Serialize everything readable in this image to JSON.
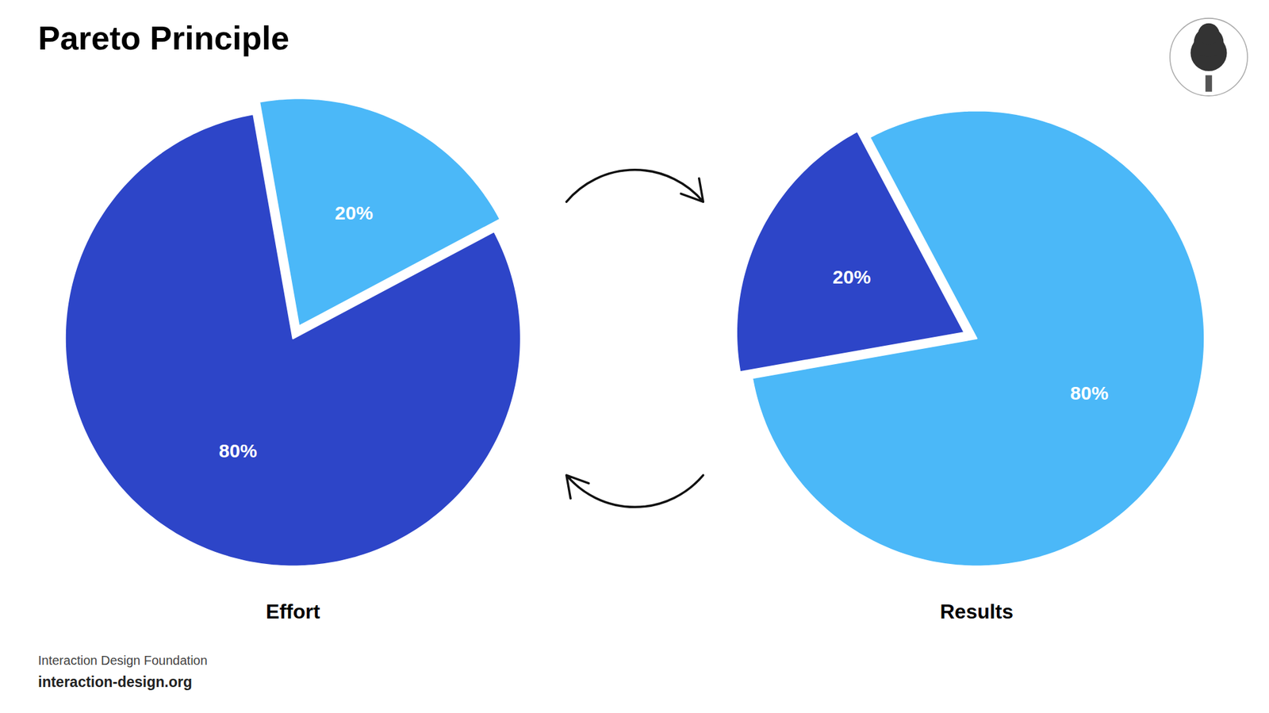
{
  "title": "Pareto Principle",
  "annotations": [
    "Interaction Design Foundation",
    "interaction-design.org"
  ],
  "chart_data": [
    {
      "type": "pie",
      "title": "Effort",
      "values": [
        80,
        20
      ],
      "value_labels": [
        "80%",
        "20%"
      ],
      "colors": [
        "#2d45c8",
        "#4bb8f8"
      ],
      "data_labels": true
    },
    {
      "type": "pie",
      "title": "Results",
      "values": [
        80,
        20
      ],
      "value_labels": [
        "80%",
        "20%"
      ],
      "colors": [
        "#4bb8f8",
        "#2d45c8"
      ],
      "data_labels": true
    }
  ]
}
